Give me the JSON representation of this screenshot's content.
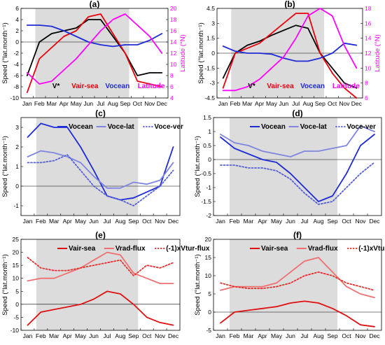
{
  "figure": {
    "months": [
      "Jan",
      "Feb",
      "Mar",
      "Apr",
      "May",
      "Jun",
      "Jul",
      "Aug",
      "Sep",
      "Oct",
      "Nov",
      "Dec"
    ],
    "ylabel": "Speed (°lat.month⁻¹)",
    "ylabel_right": "Latitude (°N)",
    "colors": {
      "black": "#000000",
      "red": "#e8000b",
      "blue": "#1f2bd6",
      "magenta": "#ff00ff",
      "blue_light": "#7f86e0",
      "blue_dot": "#5560d8",
      "red_strong": "#e01010",
      "red_light": "#f07070",
      "red_dot": "#e83030",
      "shade": "#dcdcdc"
    }
  },
  "chart_data": [
    {
      "panel": "(a)",
      "type": "line",
      "x": [
        "Jan",
        "Feb",
        "Mar",
        "Apr",
        "May",
        "Jun",
        "Jul",
        "Aug",
        "Sep",
        "Oct",
        "Nov",
        "Dec"
      ],
      "ylim": [
        -10,
        6
      ],
      "yticks": [
        -10,
        -8,
        -6,
        -4,
        -2,
        0,
        2,
        4,
        6
      ],
      "ylim_right": [
        4,
        20
      ],
      "yticks_right": [
        4,
        6,
        8,
        10,
        12,
        14,
        16,
        18,
        20
      ],
      "shaded_months": [
        "Feb",
        "Sep"
      ],
      "series": [
        {
          "name": "V*",
          "color": "black",
          "axis": "left",
          "style": "solid",
          "values": [
            -6,
            0,
            1.5,
            2,
            2.5,
            4,
            4,
            1,
            -2,
            -6,
            -5.5,
            -5.5
          ]
        },
        {
          "name": "Vair-sea",
          "color": "red",
          "axis": "left",
          "style": "solid",
          "values": [
            -9,
            -3,
            -1,
            1,
            2,
            4.5,
            5,
            1.5,
            -2,
            -7,
            -7.5,
            -8
          ]
        },
        {
          "name": "Vocean",
          "color": "blue",
          "axis": "left",
          "style": "solid",
          "values": [
            3,
            3,
            2.8,
            2,
            1,
            0,
            -0.5,
            -0.8,
            -0.5,
            -0.5,
            0.3,
            1.5
          ]
        },
        {
          "name": "Latitude",
          "color": "magenta",
          "axis": "right",
          "style": "solid",
          "values": [
            8.5,
            6.5,
            7,
            9,
            11,
            13.5,
            16,
            18,
            19,
            17,
            15,
            12
          ]
        }
      ],
      "legend": [
        {
          "label": "V*",
          "color": "black"
        },
        {
          "label": "Vair-sea",
          "color": "red"
        },
        {
          "label": "Vocean",
          "color": "blue"
        },
        {
          "label": "Latitude",
          "color": "magenta"
        }
      ]
    },
    {
      "panel": "(b)",
      "type": "line",
      "x": [
        "Jan",
        "Feb",
        "Mar",
        "Apr",
        "May",
        "Jun",
        "Jul",
        "Aug",
        "Sep",
        "Oct",
        "Nov",
        "Dec"
      ],
      "ylim": [
        -4.5,
        4.5
      ],
      "yticks": [
        -4.5,
        -3,
        -1.5,
        0,
        1.5,
        3,
        4.5
      ],
      "ylim_right": [
        6,
        18
      ],
      "yticks_right": [
        6,
        8,
        10,
        12,
        14,
        16,
        18
      ],
      "shaded_months": [
        "Feb",
        "Sep"
      ],
      "series": [
        {
          "name": "V*",
          "color": "black",
          "axis": "left",
          "style": "solid",
          "values": [
            -2.5,
            0,
            0.8,
            1.2,
            1.8,
            2.3,
            2.8,
            2.5,
            0,
            -1.5,
            -3,
            -3.5
          ]
        },
        {
          "name": "Vair-sea",
          "color": "red",
          "axis": "left",
          "style": "solid",
          "values": [
            -3.5,
            0,
            0.5,
            1,
            2,
            3,
            4,
            4,
            0,
            -2,
            -3.5,
            -4.5
          ]
        },
        {
          "name": "Vocean",
          "color": "blue",
          "axis": "left",
          "style": "solid",
          "values": [
            0.7,
            0.2,
            0,
            0,
            -0.1,
            -0.5,
            -0.8,
            -0.8,
            -0.5,
            0,
            1,
            0.8
          ]
        },
        {
          "name": "Latitude",
          "color": "magenta",
          "axis": "right",
          "style": "solid",
          "values": [
            7,
            7,
            7.5,
            8.5,
            10,
            11.5,
            14,
            17,
            18,
            17,
            13,
            10
          ]
        }
      ],
      "legend": [
        {
          "label": "V*",
          "color": "black"
        },
        {
          "label": "Vair-sea",
          "color": "red"
        },
        {
          "label": "Vocean",
          "color": "blue"
        },
        {
          "label": "Latitude",
          "color": "magenta"
        }
      ]
    },
    {
      "panel": "(c)",
      "type": "line",
      "x": [
        "Jan",
        "Feb",
        "Mar",
        "Apr",
        "May",
        "Jun",
        "Jul",
        "Aug",
        "Sep",
        "Oct",
        "Nov",
        "Dec"
      ],
      "ylim": [
        -1.5,
        3.5
      ],
      "yticks": [
        -1,
        0,
        1,
        2,
        3
      ],
      "shaded_months": [
        "Feb",
        "Sep"
      ],
      "series": [
        {
          "name": "Vocean",
          "color": "blue",
          "style": "solid",
          "values": [
            2.5,
            3.2,
            3,
            3,
            2,
            0.8,
            -0.5,
            -0.7,
            -0.6,
            -0.3,
            0,
            2
          ]
        },
        {
          "name": "Voce-lat",
          "color": "blue_light",
          "style": "solid",
          "values": [
            1.5,
            1.8,
            1.7,
            1.5,
            1.2,
            0.5,
            -0.1,
            -0.1,
            0.2,
            0.1,
            0.3,
            1.2
          ]
        },
        {
          "name": "Voce-ver",
          "color": "blue_dot",
          "style": "dotted",
          "values": [
            1.2,
            1.2,
            1.3,
            1.6,
            0.8,
            0,
            -0.5,
            -0.7,
            -1,
            -0.5,
            0,
            0.8
          ]
        }
      ],
      "legend": [
        {
          "label": "Vocean",
          "color": "blue",
          "style": "solid"
        },
        {
          "label": "Voce-lat",
          "color": "blue_light",
          "style": "solid"
        },
        {
          "label": "Voce-ver",
          "color": "blue_dot",
          "style": "dotted"
        }
      ]
    },
    {
      "panel": "(d)",
      "type": "line",
      "x": [
        "Jan",
        "Feb",
        "Mar",
        "Apr",
        "May",
        "Jun",
        "Jul",
        "Aug",
        "Sep",
        "Oct",
        "Nov",
        "Dec"
      ],
      "ylim": [
        -2,
        1.5
      ],
      "yticks": [
        -2,
        -1.5,
        -1,
        -0.5,
        0,
        0.5,
        1,
        1.5
      ],
      "shaded_months": [
        "Feb",
        "Sep"
      ],
      "series": [
        {
          "name": "Vocean",
          "color": "blue",
          "style": "solid",
          "values": [
            0.8,
            0.4,
            0.2,
            0,
            -0.1,
            -0.5,
            -1,
            -1.5,
            -1.3,
            -0.5,
            0.5,
            0.9
          ]
        },
        {
          "name": "Voce-lat",
          "color": "blue_light",
          "style": "solid",
          "values": [
            0.9,
            0.6,
            0.5,
            0.3,
            0.2,
            0.1,
            0.3,
            0.3,
            0.4,
            0.5,
            1.2,
            1
          ]
        },
        {
          "name": "Voce-ver",
          "color": "blue_dot",
          "style": "dotted",
          "values": [
            -0.2,
            -0.2,
            -0.3,
            -0.3,
            -0.4,
            -0.7,
            -1.2,
            -1.6,
            -1.5,
            -1,
            -0.5,
            -0.1
          ]
        }
      ],
      "legend": [
        {
          "label": "Vocean",
          "color": "blue",
          "style": "solid"
        },
        {
          "label": "Voce-lat",
          "color": "blue_light",
          "style": "solid"
        },
        {
          "label": "Voce-ver",
          "color": "blue_dot",
          "style": "dotted"
        }
      ]
    },
    {
      "panel": "(e)",
      "type": "line",
      "x": [
        "Jan",
        "Feb",
        "Mar",
        "Apr",
        "May",
        "Jun",
        "Jul",
        "Aug",
        "Sep",
        "Oct",
        "Nov",
        "Dec"
      ],
      "ylim": [
        -10,
        25
      ],
      "yticks": [
        -10,
        -5,
        0,
        5,
        10,
        15,
        20,
        25
      ],
      "shaded_months": [
        "Feb",
        "Sep"
      ],
      "series": [
        {
          "name": "Vair-sea",
          "color": "red_strong",
          "style": "solid",
          "values": [
            -8,
            -3,
            -2,
            -1,
            0,
            2,
            5,
            4,
            0,
            -5,
            -7,
            -8
          ]
        },
        {
          "name": "Vrad-flux",
          "color": "red_light",
          "style": "solid",
          "values": [
            9,
            10,
            10,
            12,
            14,
            17,
            20,
            19,
            12,
            10,
            8,
            8
          ]
        },
        {
          "name": "(-1)xVtur-flux",
          "color": "red_dot",
          "style": "dotted",
          "values": [
            18,
            14,
            13,
            13,
            14,
            15,
            16,
            17,
            11,
            15,
            14,
            16
          ]
        }
      ],
      "legend": [
        {
          "label": "Vair-sea",
          "color": "red_strong",
          "style": "solid"
        },
        {
          "label": "Vrad-flux",
          "color": "red_light",
          "style": "solid"
        },
        {
          "label": "(-1)xVtur-flux",
          "color": "red_dot",
          "style": "dotted"
        }
      ]
    },
    {
      "panel": "(f)",
      "type": "line",
      "x": [
        "Jan",
        "Feb",
        "Mar",
        "Apr",
        "May",
        "Jun",
        "Jul",
        "Aug",
        "Sep",
        "Oct",
        "Nov",
        "Dec"
      ],
      "ylim": [
        -5,
        20
      ],
      "yticks": [
        -5,
        0,
        5,
        10,
        15,
        20
      ],
      "shaded_months": [
        "Feb",
        "Sep"
      ],
      "series": [
        {
          "name": "Vair-sea",
          "color": "red_strong",
          "style": "solid",
          "values": [
            -3,
            0,
            0.5,
            1,
            1.5,
            2.5,
            3,
            2.5,
            1,
            -1,
            -3.5,
            -4
          ]
        },
        {
          "name": "Vrad-flux",
          "color": "red_light",
          "style": "solid",
          "values": [
            6,
            7,
            7,
            7,
            8,
            11,
            14,
            15,
            11,
            7,
            5,
            4
          ]
        },
        {
          "name": "(-1)xVtur-flux",
          "color": "red_dot",
          "style": "dotted",
          "values": [
            8,
            7,
            6.5,
            6.5,
            7,
            8,
            10,
            11,
            10,
            8,
            7,
            6
          ]
        }
      ],
      "legend": [
        {
          "label": "Vair-sea",
          "color": "red_strong",
          "style": "solid"
        },
        {
          "label": "Vrad-flux",
          "color": "red_light",
          "style": "solid"
        },
        {
          "label": "(-1)xVtur-flux",
          "color": "red_dot",
          "style": "dotted"
        }
      ]
    }
  ]
}
